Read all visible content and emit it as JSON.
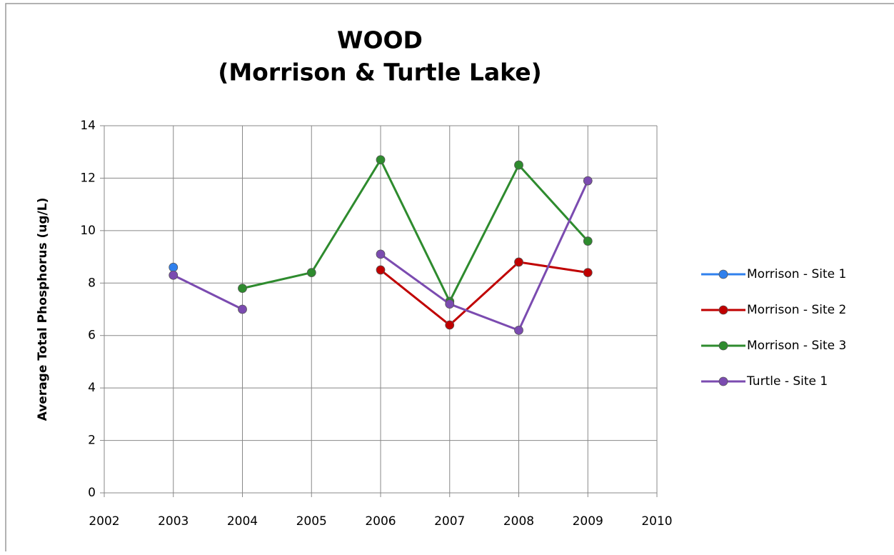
{
  "chart_data": {
    "type": "line",
    "title": [
      "WOOD",
      "(Morrison & Turtle Lake)"
    ],
    "y_label": "Average Total Phosphorus (ug/L)",
    "x": [
      2003,
      2004,
      2005,
      2006,
      2007,
      2008,
      2009
    ],
    "series": [
      {
        "name": "Morrison - Site 1",
        "color": "#2f80ed",
        "values": [
          8.6,
          null,
          null,
          null,
          null,
          null,
          null
        ]
      },
      {
        "name": "Morrison - Site 2",
        "color": "#c00000",
        "values": [
          null,
          null,
          null,
          8.5,
          6.4,
          8.8,
          8.4
        ]
      },
      {
        "name": "Morrison - Site 3",
        "color": "#2e8b2e",
        "values": [
          null,
          7.8,
          8.4,
          12.7,
          7.3,
          12.5,
          9.6
        ]
      },
      {
        "name": "Turtle - Site 1",
        "color": "#7b4bb0",
        "values": [
          8.3,
          7.0,
          null,
          9.1,
          7.2,
          6.2,
          11.9
        ]
      }
    ],
    "xlim": [
      2002,
      2010
    ],
    "xticks": [
      2002,
      2003,
      2004,
      2005,
      2006,
      2007,
      2008,
      2009,
      2010
    ],
    "ylim": [
      0,
      14
    ],
    "yticks": [
      0,
      2,
      4,
      6,
      8,
      10,
      12,
      14
    ],
    "grid": true,
    "legend": "right"
  }
}
